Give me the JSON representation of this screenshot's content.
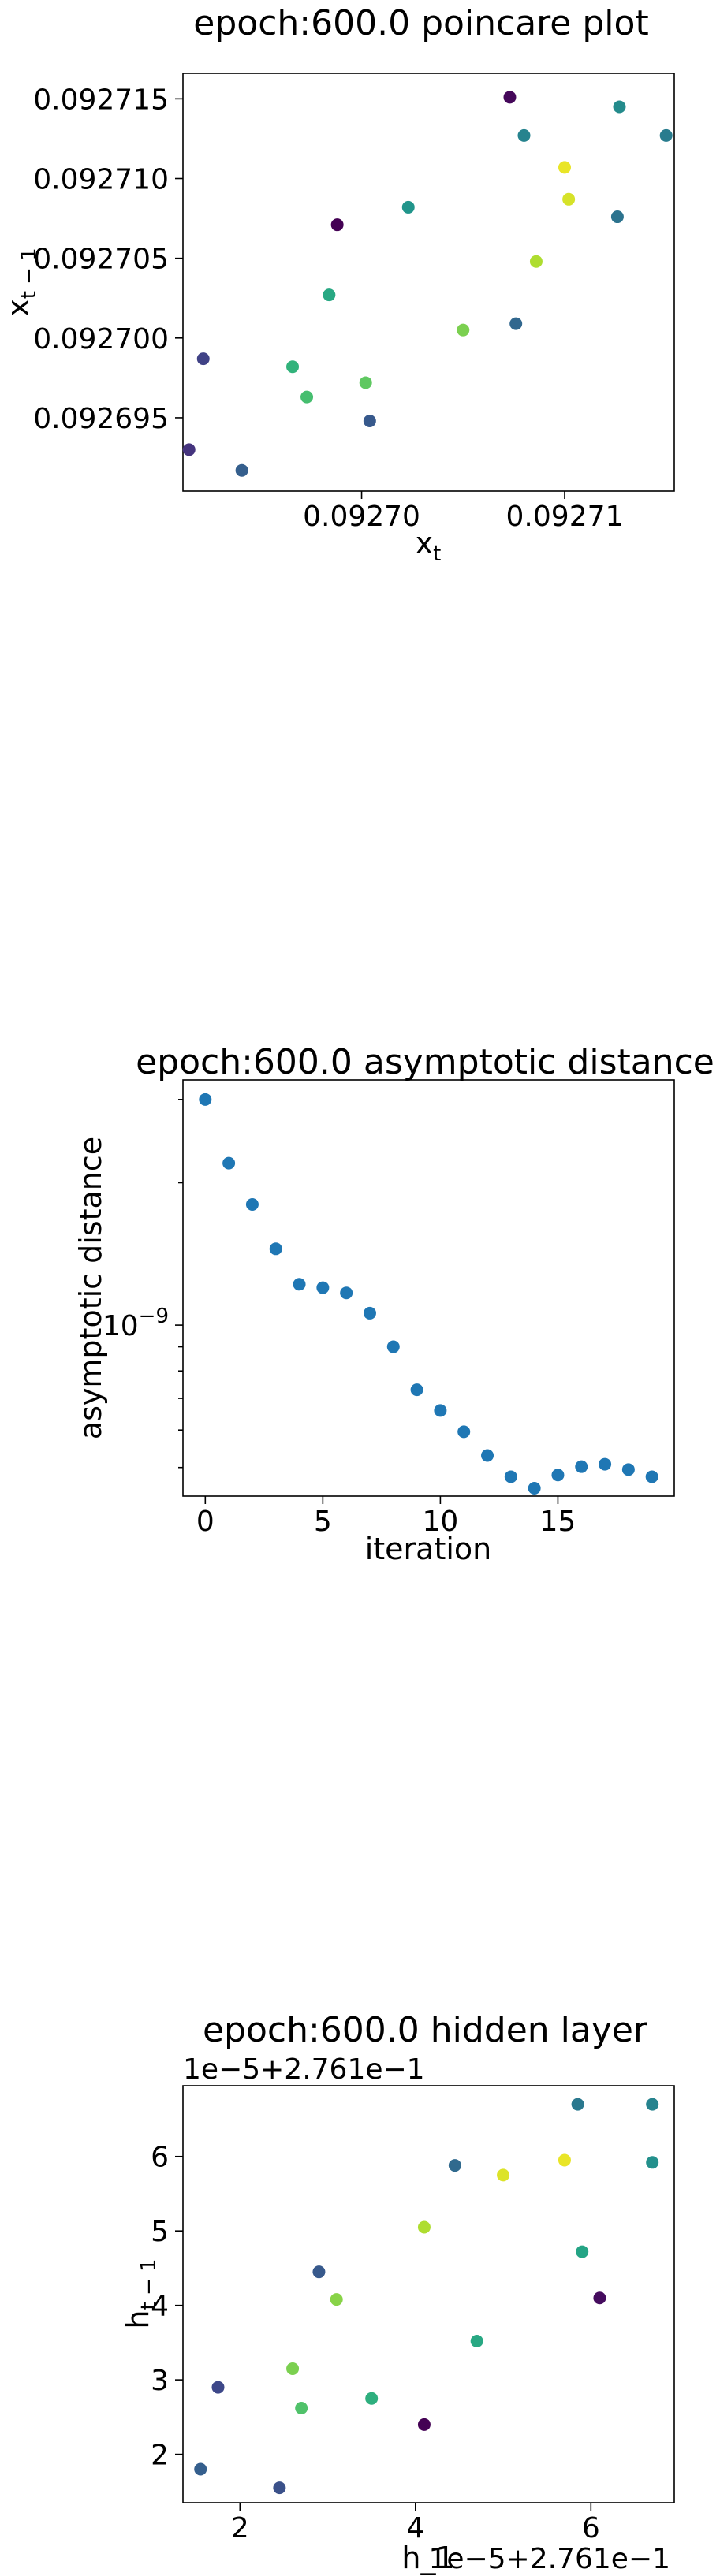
{
  "chart_data": [
    {
      "type": "scatter",
      "title": "epoch:600.0 poincare plot",
      "xlabel": "x_t",
      "ylabel": "x_{t-1}",
      "xlim": [
        0.0926912,
        0.0927154
      ],
      "ylim": [
        0.0926904,
        0.0927166
      ],
      "xticks": [
        0.0927,
        0.09271
      ],
      "xtick_labels": [
        "0.09270",
        "0.09271"
      ],
      "yticks": [
        0.092695,
        0.0927,
        0.092705,
        0.09271,
        0.092715
      ],
      "ytick_labels": [
        "0.092695",
        "0.092700",
        "0.092705",
        "0.092710",
        "0.092715"
      ],
      "colormap": "viridis",
      "points": [
        {
          "x": 0.0926915,
          "y": 0.092693,
          "c": 0.15
        },
        {
          "x": 0.0926941,
          "y": 0.0926917,
          "c": 0.3
        },
        {
          "x": 0.0926922,
          "y": 0.0926987,
          "c": 0.2
        },
        {
          "x": 0.0926966,
          "y": 0.0926982,
          "c": 0.65
        },
        {
          "x": 0.0926973,
          "y": 0.0926963,
          "c": 0.7
        },
        {
          "x": 0.0926984,
          "y": 0.0927027,
          "c": 0.6
        },
        {
          "x": 0.0926988,
          "y": 0.0927071,
          "c": 0.0
        },
        {
          "x": 0.0927002,
          "y": 0.0926972,
          "c": 0.75
        },
        {
          "x": 0.0927004,
          "y": 0.0926948,
          "c": 0.28
        },
        {
          "x": 0.0927023,
          "y": 0.0927082,
          "c": 0.52
        },
        {
          "x": 0.092705,
          "y": 0.0927005,
          "c": 0.8
        },
        {
          "x": 0.0927073,
          "y": 0.0927151,
          "c": 0.02
        },
        {
          "x": 0.0927076,
          "y": 0.0927009,
          "c": 0.33
        },
        {
          "x": 0.092708,
          "y": 0.0927127,
          "c": 0.45
        },
        {
          "x": 0.0927086,
          "y": 0.0927048,
          "c": 0.88
        },
        {
          "x": 0.09271,
          "y": 0.0927107,
          "c": 0.97
        },
        {
          "x": 0.0927102,
          "y": 0.0927087,
          "c": 0.94
        },
        {
          "x": 0.0927126,
          "y": 0.0927076,
          "c": 0.38
        },
        {
          "x": 0.0927127,
          "y": 0.0927145,
          "c": 0.48
        },
        {
          "x": 0.092715,
          "y": 0.0927127,
          "c": 0.42
        }
      ]
    },
    {
      "type": "scatter",
      "title": "epoch:600.0 asymptotic distance",
      "xlabel": "iteration",
      "ylabel": "asymptotic distance",
      "yscale": "log",
      "xlim": [
        -0.95,
        19.95
      ],
      "ylim": [
        4.35e-10,
        3.3e-09
      ],
      "xticks": [
        0,
        5,
        10,
        15
      ],
      "xtick_labels": [
        "0",
        "5",
        "10",
        "15"
      ],
      "ytick_major": 1e-09,
      "ytick_label": "10^{−9}",
      "yminor": [
        5e-10,
        6e-10,
        7e-10,
        8e-10,
        9e-10,
        2e-09,
        3e-09
      ],
      "color": "#1f77b4",
      "x": [
        0,
        1,
        2,
        3,
        4,
        5,
        6,
        7,
        8,
        9,
        10,
        11,
        12,
        13,
        14,
        15,
        16,
        17,
        18,
        19
      ],
      "y": [
        3e-09,
        2.2e-09,
        1.8e-09,
        1.45e-09,
        1.22e-09,
        1.2e-09,
        1.17e-09,
        1.06e-09,
        9e-10,
        7.3e-10,
        6.6e-10,
        5.95e-10,
        5.3e-10,
        4.78e-10,
        4.52e-10,
        4.82e-10,
        5.02e-10,
        5.08e-10,
        4.95e-10,
        4.78e-10
      ]
    },
    {
      "type": "scatter",
      "title": "epoch:600.0 hidden layer",
      "xlabel": "h_1",
      "ylabel": "h_{t-1}",
      "x_offset_text": "1e−5+2.761e−1",
      "y_offset_text": "1e−5+2.761e−1",
      "xlim": [
        1.35,
        6.95
      ],
      "ylim": [
        1.35,
        6.95
      ],
      "xticks": [
        2,
        4,
        6
      ],
      "yticks": [
        2,
        3,
        4,
        5,
        6
      ],
      "colormap": "viridis",
      "points": [
        {
          "x": 1.55,
          "y": 1.8,
          "c": 0.3
        },
        {
          "x": 2.45,
          "y": 1.55,
          "c": 0.25
        },
        {
          "x": 1.75,
          "y": 2.9,
          "c": 0.22
        },
        {
          "x": 2.6,
          "y": 3.15,
          "c": 0.8
        },
        {
          "x": 2.7,
          "y": 2.62,
          "c": 0.72
        },
        {
          "x": 2.9,
          "y": 4.45,
          "c": 0.28
        },
        {
          "x": 3.1,
          "y": 4.08,
          "c": 0.82
        },
        {
          "x": 3.5,
          "y": 2.75,
          "c": 0.63
        },
        {
          "x": 4.1,
          "y": 5.05,
          "c": 0.88
        },
        {
          "x": 4.1,
          "y": 2.4,
          "c": 0.0
        },
        {
          "x": 4.45,
          "y": 5.88,
          "c": 0.34
        },
        {
          "x": 4.7,
          "y": 3.52,
          "c": 0.6
        },
        {
          "x": 5.0,
          "y": 5.75,
          "c": 0.95
        },
        {
          "x": 5.7,
          "y": 5.95,
          "c": 0.97
        },
        {
          "x": 5.85,
          "y": 6.7,
          "c": 0.4
        },
        {
          "x": 5.9,
          "y": 4.72,
          "c": 0.58
        },
        {
          "x": 6.1,
          "y": 4.1,
          "c": 0.03
        },
        {
          "x": 6.7,
          "y": 6.7,
          "c": 0.45
        },
        {
          "x": 6.7,
          "y": 5.92,
          "c": 0.5
        }
      ]
    }
  ]
}
